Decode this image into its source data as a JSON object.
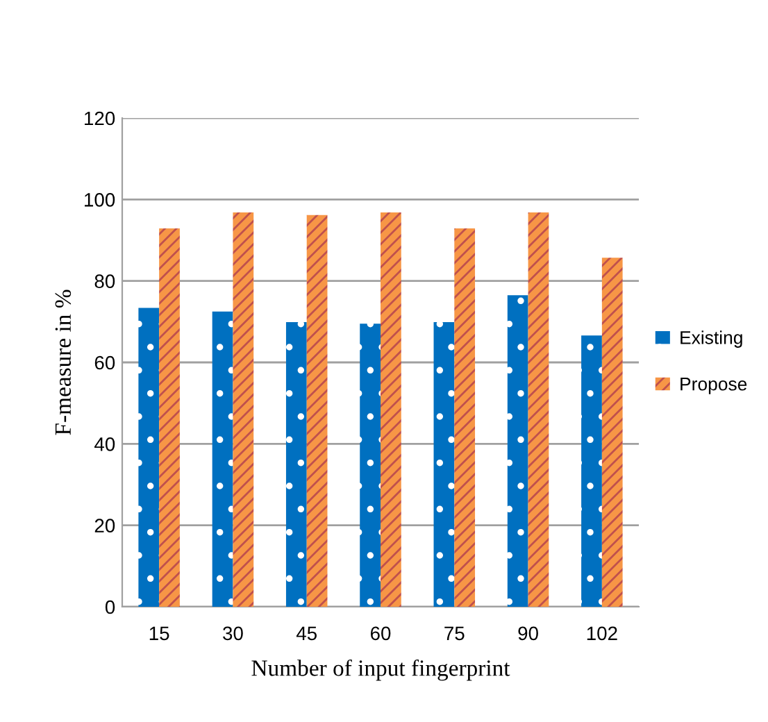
{
  "chart_data": {
    "type": "bar",
    "xlabel": "Number of input fingerprint",
    "ylabel": "F-measure in %",
    "categories": [
      "15",
      "30",
      "45",
      "60",
      "75",
      "90",
      "102"
    ],
    "series": [
      {
        "name": "Existing",
        "color": "#0070c0",
        "values": [
          73.4,
          72.5,
          69.9,
          69.5,
          69.9,
          76.5,
          66.6
        ]
      },
      {
        "name": "Propose",
        "color": "#f79646",
        "values": [
          92.9,
          96.8,
          96.2,
          96.8,
          92.9,
          96.8,
          85.7
        ]
      }
    ],
    "ylim": [
      0,
      120
    ],
    "yticks": [
      0,
      20,
      40,
      60,
      80,
      100,
      120
    ],
    "grid": "y",
    "legend": "right"
  }
}
